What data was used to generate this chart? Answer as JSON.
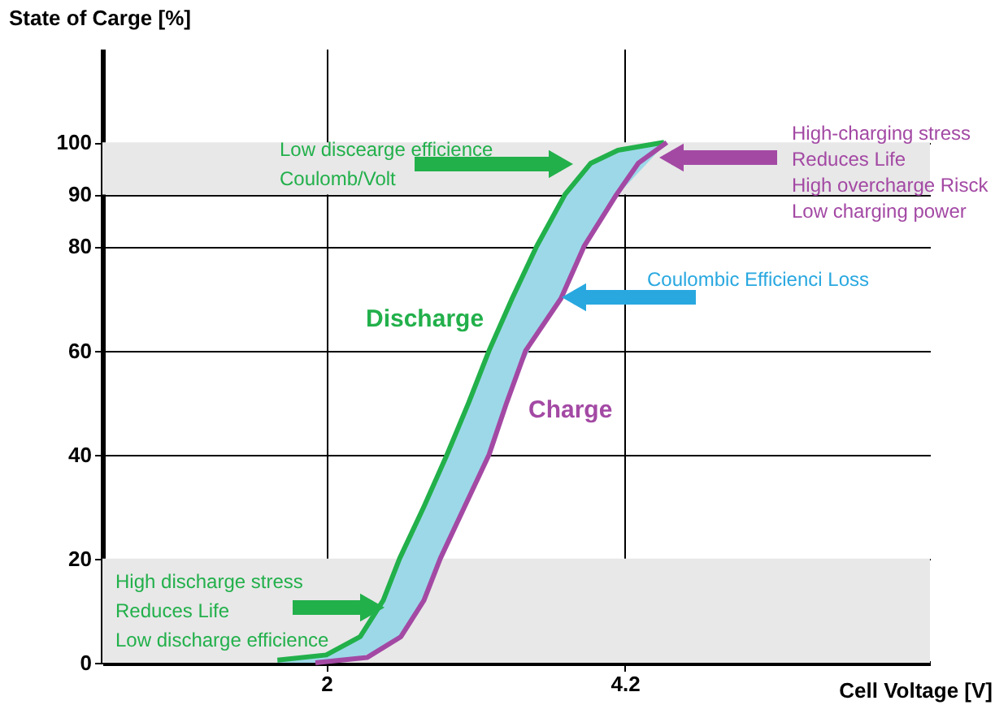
{
  "chart_data": {
    "type": "line",
    "xlabel": "Cell Voltage [V]",
    "ylabel": "State of Carge [%]",
    "xlim": [
      0.35,
      6.45
    ],
    "xticks": [
      2,
      4.2
    ],
    "ylim": [
      0,
      118
    ],
    "yticks": [
      0,
      20,
      40,
      60,
      80,
      90,
      100
    ],
    "grid": true,
    "marker": "none",
    "line_style": "solid",
    "bands": [
      {
        "axis": "y",
        "from": 0,
        "to": 20,
        "color": "#e8e8e8"
      },
      {
        "axis": "y",
        "from": 90,
        "to": 100,
        "color": "#e8e8e8"
      }
    ],
    "series": [
      {
        "name": "Discharge",
        "color": "#22b04b",
        "x": [
          1.64,
          2.0,
          2.25,
          2.42,
          2.54,
          2.72,
          2.89,
          3.05,
          3.2,
          3.37,
          3.55,
          3.76,
          3.95,
          4.15,
          4.49
        ],
        "values": [
          0.5,
          1.5,
          5,
          12,
          20,
          30,
          40,
          50,
          60,
          70,
          80,
          90,
          96,
          98.5,
          100
        ],
        "lower": [
          0,
          0,
          1,
          3,
          5,
          12,
          23,
          32,
          40,
          53,
          63,
          71,
          82,
          90,
          99.5
        ],
        "upper": [
          0.5,
          1.5,
          5,
          12,
          20,
          30,
          40,
          50,
          60,
          70,
          80,
          90,
          96,
          98.5,
          100
        ]
      },
      {
        "name": "Charge",
        "color": "#a349a4",
        "x": [
          1.92,
          2.3,
          2.55,
          2.72,
          2.84,
          3.02,
          3.2,
          3.33,
          3.47,
          3.73,
          3.9,
          4.14,
          4.3,
          4.51
        ],
        "values": [
          0,
          1,
          5,
          12,
          20,
          30,
          40,
          50,
          60,
          70,
          80,
          90,
          96,
          100
        ]
      }
    ],
    "annotations": [
      "Low discearge efficience\nCoulomb/Volt",
      "High-charging stress\nReduces Life\nHigh overcharge Risck\nLow charging power",
      "Coulombic Efficienci Loss",
      "High discharge stress\nReduces Life\nLow discharge efficience"
    ]
  }
}
